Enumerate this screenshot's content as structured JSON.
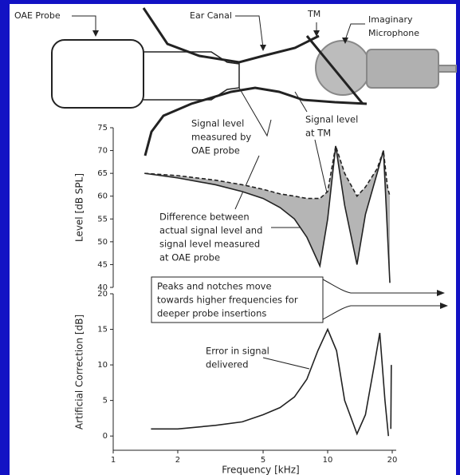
{
  "diagram": {
    "labels": {
      "probe": "OAE Probe",
      "canal": "Ear Canal",
      "tm": "TM",
      "mic": [
        "Imaginary",
        "Microphone"
      ]
    }
  },
  "chart_data": [
    {
      "type": "line",
      "ylabel": "Level [dB SPL]",
      "xscale": "log",
      "xlim": [
        1,
        20
      ],
      "ylim": [
        40,
        75
      ],
      "yticks": [
        40,
        45,
        50,
        55,
        60,
        65,
        70,
        75
      ],
      "x": [
        1.4,
        2,
        3,
        4,
        5,
        6,
        7,
        8,
        9.2,
        10,
        10.9,
        12,
        13.7,
        15,
        17,
        18.2,
        19,
        19.5
      ],
      "series": [
        {
          "color": "#222222",
          "dash": true,
          "values": [
            65,
            64.5,
            63.5,
            62.5,
            61.5,
            60.5,
            60,
            59.5,
            59.5,
            61,
            71,
            65,
            60,
            62,
            66,
            70,
            62,
            60
          ]
        },
        {
          "color": "#222222",
          "dash": false,
          "values": [
            65,
            64,
            62.5,
            61,
            59.5,
            57.5,
            55,
            51,
            44.7,
            55,
            71,
            58,
            45,
            56,
            65,
            70,
            52,
            41
          ]
        }
      ],
      "fill_between": true,
      "fill_color": "#b5b5b5",
      "annotations": [
        [
          "Signal level",
          "measured by",
          "OAE probe"
        ],
        [
          "Signal level",
          "at TM"
        ],
        [
          "Difference between",
          "actual signal level and",
          "signal level measured",
          "at OAE probe"
        ],
        [
          "Peaks and notches move",
          "towards higher frequencies for",
          "deeper probe insertions"
        ]
      ]
    },
    {
      "type": "line",
      "ylabel": "Artificial Correction [dB]",
      "xlabel": "Frequency [kHz]",
      "xscale": "log",
      "xlim": [
        1,
        20
      ],
      "xticks": [
        1,
        2,
        5,
        10,
        20
      ],
      "ylim": [
        -2,
        20
      ],
      "yticks": [
        0,
        5,
        10,
        15,
        20
      ],
      "x": [
        1.5,
        2,
        3,
        4,
        5,
        6,
        7,
        8,
        9,
        10,
        11,
        12,
        13.7,
        15,
        16.5,
        17.5,
        18.5,
        19.2,
        19.5,
        19.7,
        19.8
      ],
      "series": [
        {
          "color": "#222222",
          "values": [
            1,
            1,
            1.5,
            2,
            3,
            4,
            5.5,
            8,
            12,
            15,
            12,
            5,
            0.3,
            3,
            10,
            14.5,
            5,
            0,
            null,
            1,
            10
          ]
        }
      ],
      "annotations": [
        [
          "Error in signal",
          "delivered"
        ]
      ]
    }
  ]
}
